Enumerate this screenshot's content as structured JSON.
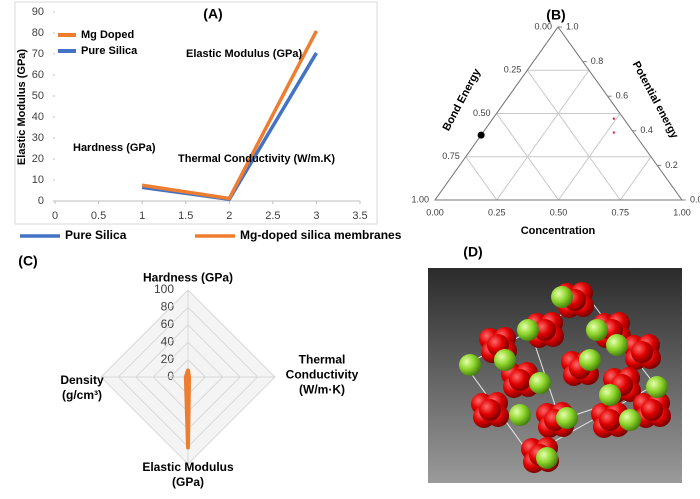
{
  "chart_data": [
    {
      "type": "line",
      "title": "(A)",
      "y_label": "Elastic Modulus (GPa)",
      "x": [
        1,
        2,
        3
      ],
      "series": [
        {
          "name": "Mg Doped",
          "color": "#ed7d31",
          "values": [
            7.5,
            1.2,
            81
          ]
        },
        {
          "name": "Pure Silica",
          "color": "#4472c4",
          "values": [
            6.5,
            0.8,
            70.5
          ]
        }
      ],
      "xlim": [
        0,
        3.5
      ],
      "xticks": [
        0,
        0.5,
        1,
        1.5,
        2,
        2.5,
        3,
        3.5
      ],
      "ylim": [
        0,
        90
      ],
      "yticks": [
        0,
        10,
        20,
        30,
        40,
        50,
        60,
        70,
        80,
        90
      ],
      "grid": false,
      "legend": "top-left",
      "annotations": [
        "Hardness (GPa)",
        "Thermal Conductivity (W/m.K)",
        "Elastic Modulus (GPa)"
      ],
      "bottom_legend": [
        {
          "name": "Pure Silica",
          "color": "#4472c4"
        },
        {
          "name": "Mg-doped silica membranes",
          "color": "#ed7d31"
        }
      ]
    },
    {
      "type": "ternary",
      "title": "(B)",
      "bottom_axis": {
        "label": "Concentration",
        "ticks": [
          {
            "value": 0,
            "label": "0.00"
          },
          0.25,
          {
            "value": 0.5,
            "label": "0.50"
          },
          0.75,
          {
            "value": 1,
            "label": "1.00"
          }
        ]
      },
      "left_axis": {
        "label": "Bond Energy",
        "ticks": [
          {
            "value": 1,
            "label": "1.00"
          },
          0.75,
          {
            "value": 0.5,
            "label": "0.50"
          },
          0.25,
          {
            "value": 0,
            "label": "0.00"
          }
        ]
      },
      "right_axis": {
        "label": "Potential energy",
        "ticks": [
          {
            "value": 1,
            "label": "1.0"
          },
          0.8,
          0.6,
          0.4,
          0.2,
          {
            "value": 0,
            "label": "0.0"
          }
        ]
      },
      "points": [
        {
          "color": "#000000",
          "values": [
            0.625,
            0.375,
            0
          ]
        },
        {
          "color": "#e0204a",
          "values": [
            0.04,
            0.47,
            0.49
          ]
        },
        {
          "color": "#e0204a",
          "values": [
            0.08,
            0.39,
            0.53
          ]
        }
      ]
    },
    {
      "type": "radar",
      "title": "(C)",
      "categories": [
        "Hardness (GPa)",
        "Thermal Conductivity (W/m·K)",
        "Elastic Modulus (GPa)",
        "Density (g/cm³)"
      ],
      "rlim": [
        0,
        100
      ],
      "rticks": [
        0,
        20,
        40,
        60,
        80,
        100
      ],
      "series": [
        {
          "color": "#ed7d31",
          "values": [
            7.5,
            1.2,
            81,
            2.5
          ]
        }
      ]
    }
  ],
  "figure_d": {
    "title": "(D)"
  }
}
